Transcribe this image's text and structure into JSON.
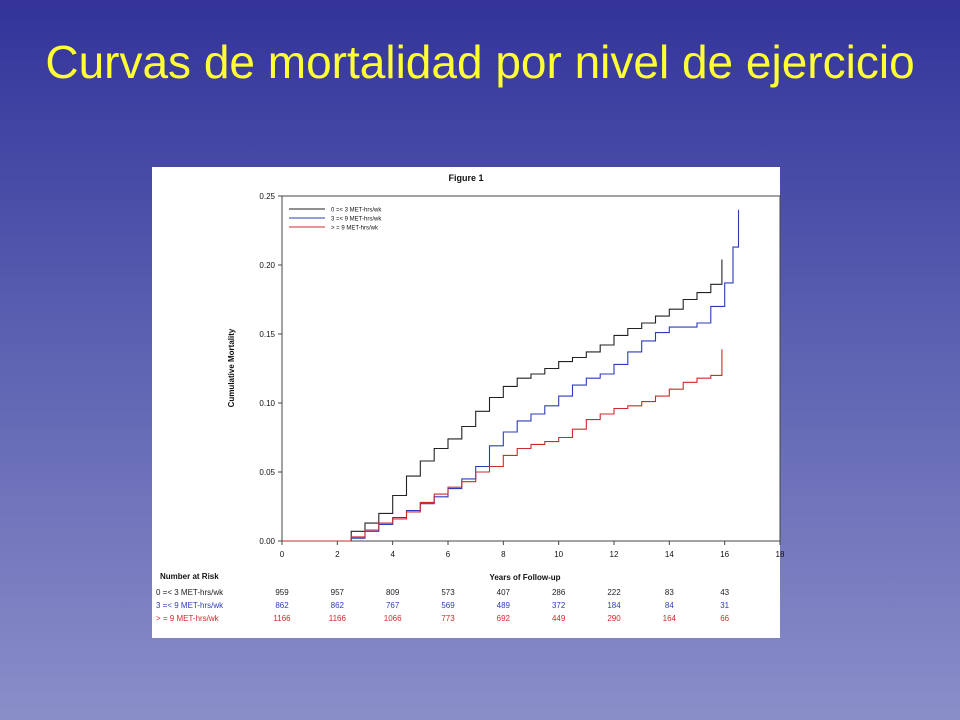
{
  "slide": {
    "title": "Curvas de mortalidad por nivel de ejercicio"
  },
  "colors": {
    "background_top": "#33339a",
    "background_bottom": "#8a8ec9",
    "title": "#ffff33",
    "series_low": "#222222",
    "series_mid": "#2c3bb8",
    "series_high": "#cc2b2b"
  },
  "chart_data": {
    "type": "line",
    "title": "Figure 1",
    "xlabel": "Years of Follow-up",
    "ylabel": "Cumulative Mortality",
    "xlim": [
      0,
      18
    ],
    "ylim": [
      0,
      0.25
    ],
    "xticks": [
      "0",
      "2",
      "4",
      "6",
      "8",
      "10",
      "12",
      "14",
      "16",
      "18"
    ],
    "yticks": [
      "0.00",
      "0.05",
      "0.10",
      "0.15",
      "0.20",
      "0.25"
    ],
    "legend_position": "top-left",
    "grid": false,
    "series": [
      {
        "name": "0 =< 3 MET-hrs/wk",
        "color": "#222222",
        "x": [
          0,
          2,
          2.5,
          3,
          3.5,
          4,
          4.5,
          5,
          5.5,
          6,
          6.5,
          7,
          7.5,
          8,
          8.5,
          9,
          9.5,
          10,
          10.5,
          11,
          11.5,
          12,
          12.5,
          13,
          13.5,
          14,
          14.5,
          15,
          15.5,
          15.9
        ],
        "y": [
          0,
          0,
          0.007,
          0.013,
          0.02,
          0.033,
          0.047,
          0.058,
          0.067,
          0.074,
          0.083,
          0.094,
          0.104,
          0.112,
          0.118,
          0.121,
          0.125,
          0.13,
          0.133,
          0.137,
          0.142,
          0.149,
          0.154,
          0.158,
          0.163,
          0.168,
          0.175,
          0.18,
          0.186,
          0.204
        ]
      },
      {
        "name": "3 =< 9 MET-hrs/wk",
        "color": "#2c3bb8",
        "x": [
          0,
          2,
          2.5,
          3,
          3.5,
          4,
          4.5,
          5,
          5.5,
          6,
          6.5,
          7,
          7.5,
          8,
          8.5,
          9,
          9.5,
          10,
          10.5,
          11,
          11.5,
          12,
          12.5,
          13,
          13.5,
          14,
          14.5,
          15,
          15.5,
          16,
          16.3,
          16.5
        ],
        "y": [
          0,
          0,
          0.002,
          0.007,
          0.012,
          0.017,
          0.022,
          0.027,
          0.032,
          0.038,
          0.045,
          0.054,
          0.069,
          0.079,
          0.087,
          0.092,
          0.098,
          0.105,
          0.113,
          0.118,
          0.121,
          0.128,
          0.137,
          0.145,
          0.151,
          0.155,
          0.155,
          0.158,
          0.17,
          0.187,
          0.213,
          0.24
        ]
      },
      {
        "name": "> = 9 MET-hrs/wk",
        "color": "#cc2b2b",
        "x": [
          0,
          2,
          2.5,
          3,
          3.5,
          4,
          4.5,
          5,
          5.5,
          6,
          6.5,
          7,
          7.5,
          8,
          8.5,
          9,
          9.5,
          10,
          10.5,
          11,
          11.5,
          12,
          12.5,
          13,
          13.5,
          14,
          14.5,
          15,
          15.5,
          15.9
        ],
        "y": [
          0,
          0,
          0.003,
          0.008,
          0.013,
          0.016,
          0.021,
          0.028,
          0.034,
          0.039,
          0.043,
          0.05,
          0.054,
          0.062,
          0.067,
          0.07,
          0.072,
          0.075,
          0.081,
          0.088,
          0.092,
          0.096,
          0.098,
          0.101,
          0.105,
          0.11,
          0.115,
          0.118,
          0.12,
          0.139
        ]
      }
    ],
    "risk_table": {
      "header": "Number at Risk",
      "rows": [
        {
          "label": "0 =< 3 MET-hrs/wk",
          "color": "#222222",
          "values": [
            "959",
            "957",
            "809",
            "573",
            "407",
            "286",
            "222",
            "83",
            "43"
          ]
        },
        {
          "label": "3 =< 9 MET-hrs/wk",
          "color": "#2c3bb8",
          "values": [
            "862",
            "862",
            "767",
            "569",
            "489",
            "372",
            "184",
            "84",
            "31"
          ]
        },
        {
          "label": "> = 9 MET-hrs/wk",
          "color": "#cc2b2b",
          "values": [
            "1166",
            "1166",
            "1066",
            "773",
            "692",
            "449",
            "290",
            "164",
            "66"
          ]
        }
      ]
    }
  }
}
